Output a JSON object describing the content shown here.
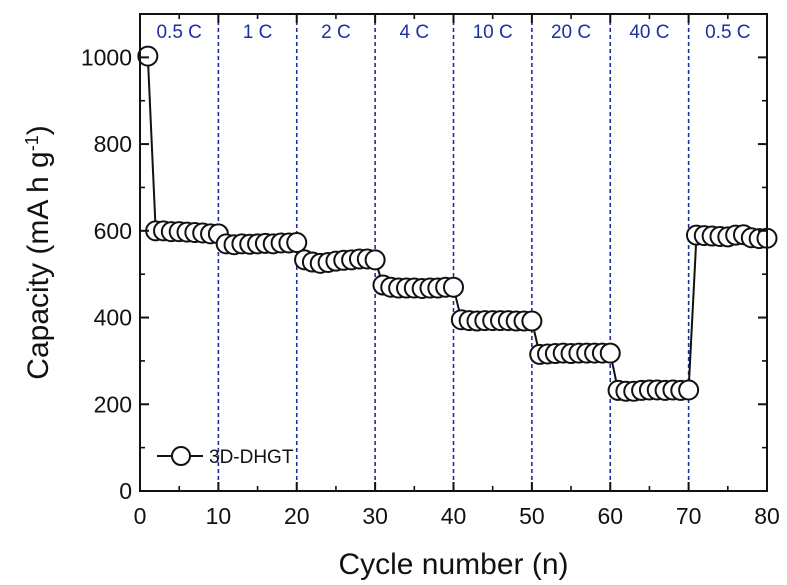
{
  "chart_data": {
    "type": "scatter",
    "xlabel": "Cycle number (n)",
    "ylabel_main": "Capacity (mA h g",
    "ylabel_sup": "-1",
    "ylabel_close": ")",
    "xlim": [
      0,
      80
    ],
    "ylim": [
      0,
      1100
    ],
    "xticks": [
      "0",
      "10",
      "20",
      "30",
      "40",
      "50",
      "60",
      "70",
      "80"
    ],
    "yticks": [
      "0",
      "200",
      "400",
      "600",
      "800",
      "1000"
    ],
    "grid": false,
    "legend_position": "bottom-left",
    "rate_dividers": [
      10,
      20,
      30,
      40,
      50,
      60,
      70
    ],
    "rate_labels": [
      {
        "label": "0.5 C",
        "start": 0,
        "end": 10
      },
      {
        "label": "1 C",
        "start": 10,
        "end": 20
      },
      {
        "label": "2 C",
        "start": 20,
        "end": 30
      },
      {
        "label": "4 C",
        "start": 30,
        "end": 40
      },
      {
        "label": "10 C",
        "start": 40,
        "end": 50
      },
      {
        "label": "20 C",
        "start": 50,
        "end": 60
      },
      {
        "label": "40 C",
        "start": 60,
        "end": 70
      },
      {
        "label": "0.5 C",
        "start": 70,
        "end": 80
      }
    ],
    "series": [
      {
        "name": "3D-DHGT",
        "x": [
          1,
          2,
          3,
          4,
          5,
          6,
          7,
          8,
          9,
          10,
          11,
          12,
          13,
          14,
          15,
          16,
          17,
          18,
          19,
          20,
          21,
          22,
          23,
          24,
          25,
          26,
          27,
          28,
          29,
          30,
          31,
          32,
          33,
          34,
          35,
          36,
          37,
          38,
          39,
          40,
          41,
          42,
          43,
          44,
          45,
          46,
          47,
          48,
          49,
          50,
          51,
          52,
          53,
          54,
          55,
          56,
          57,
          58,
          59,
          60,
          61,
          62,
          63,
          64,
          65,
          66,
          67,
          68,
          69,
          70,
          71,
          72,
          73,
          74,
          75,
          76,
          77,
          78,
          79,
          80
        ],
        "y": [
          1003,
          600,
          600,
          598,
          598,
          597,
          596,
          595,
          593,
          593,
          570,
          568,
          570,
          569,
          570,
          571,
          570,
          572,
          572,
          573,
          533,
          528,
          525,
          527,
          530,
          532,
          533,
          535,
          535,
          533,
          475,
          470,
          468,
          468,
          468,
          467,
          468,
          468,
          470,
          470,
          395,
          393,
          392,
          393,
          393,
          393,
          393,
          392,
          392,
          392,
          315,
          316,
          317,
          318,
          317,
          318,
          318,
          318,
          318,
          318,
          232,
          230,
          230,
          232,
          233,
          233,
          232,
          233,
          232,
          233,
          590,
          589,
          588,
          587,
          586,
          590,
          591,
          584,
          582,
          583
        ]
      }
    ]
  }
}
